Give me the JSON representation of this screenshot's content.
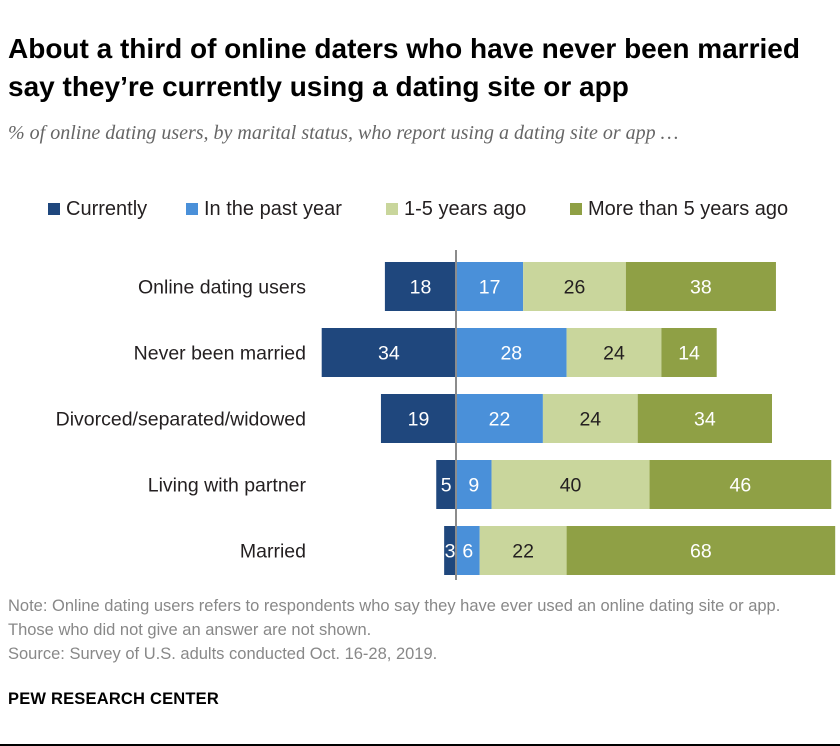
{
  "title": "About a third of online daters who have never been married say they’re currently using a dating site or app",
  "subtitle": "% of online dating users, by marital status, who report using a dating site or app …",
  "legend": [
    {
      "label": "Currently",
      "color": "#1f477d"
    },
    {
      "label": "In the past year",
      "color": "#4a90d9"
    },
    {
      "label": "1-5 years ago",
      "color": "#c9d69c"
    },
    {
      "label": "More than 5 years ago",
      "color": "#8fa045"
    }
  ],
  "chart_data": {
    "type": "bar",
    "orientation": "horizontal-diverging",
    "categories": [
      "Online dating users",
      "Never been married",
      "Divorced/separated/widowed",
      "Living with partner",
      "Married"
    ],
    "series": [
      {
        "name": "Currently",
        "values": [
          18,
          34,
          19,
          5,
          3
        ],
        "side": "left"
      },
      {
        "name": "In the past year",
        "values": [
          17,
          28,
          22,
          9,
          6
        ],
        "side": "right"
      },
      {
        "name": "1-5 years ago",
        "values": [
          26,
          24,
          24,
          40,
          22
        ],
        "side": "right"
      },
      {
        "name": "More than 5 years ago",
        "values": [
          38,
          14,
          34,
          46,
          68
        ],
        "side": "right"
      }
    ],
    "label_colors": [
      "#ffffff",
      "#ffffff",
      "#231f20",
      "#ffffff"
    ],
    "baseline_color": "#8c8c8c"
  },
  "notes": {
    "note": "Note: Online dating users refers to respondents who say they have ever used an online dating site or app. Those who did not give an answer are not shown.",
    "source": "Source: Survey of U.S. adults conducted Oct. 16-28, 2019."
  },
  "brand": "PEW RESEARCH CENTER"
}
